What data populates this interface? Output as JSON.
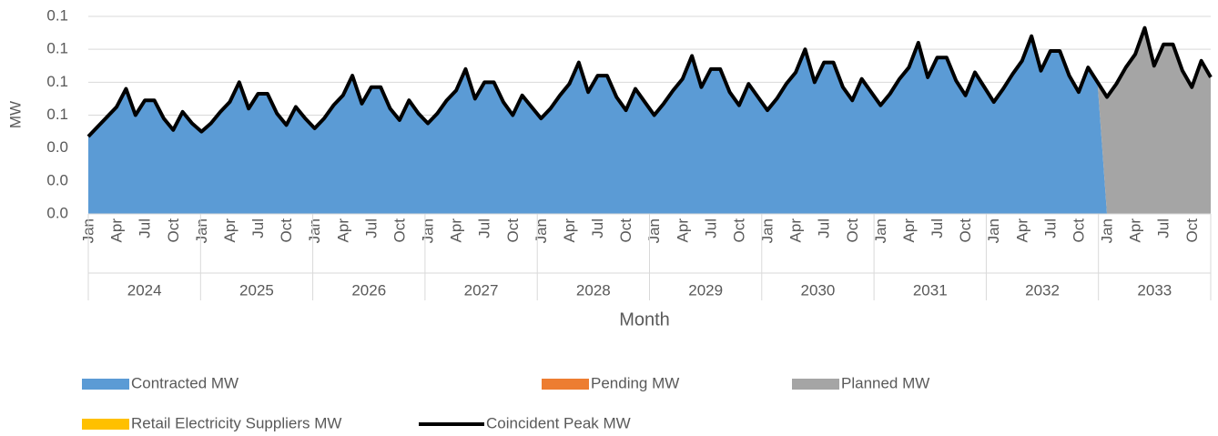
{
  "chart_data": {
    "type": "area",
    "xlabel": "Month",
    "ylabel": "MW",
    "ylim": [
      0,
      0.12
    ],
    "yticks": [
      {
        "value": 0,
        "label": "0.0"
      },
      {
        "value": 0.02,
        "label": "0.0"
      },
      {
        "value": 0.04,
        "label": "0.0"
      },
      {
        "value": 0.06,
        "label": "0.1"
      },
      {
        "value": 0.08,
        "label": "0.1"
      },
      {
        "value": 0.1,
        "label": "0.1"
      },
      {
        "value": 0.12,
        "label": "0.1"
      }
    ],
    "grid": true,
    "legend": "bottom",
    "categories": [
      "Jan",
      null,
      null,
      "Apr",
      null,
      null,
      "Jul",
      null,
      null,
      "Oct",
      null,
      null,
      "Jan",
      null,
      null,
      "Apr",
      null,
      null,
      "Jul",
      null,
      null,
      "Oct",
      null,
      null,
      "Jan",
      null,
      null,
      "Apr",
      null,
      null,
      "Jul",
      null,
      null,
      "Oct",
      null,
      null,
      "Jan",
      null,
      null,
      "Apr",
      null,
      null,
      "Jul",
      null,
      null,
      "Oct",
      null,
      null,
      "Jan",
      null,
      null,
      "Apr",
      null,
      null,
      "Jul",
      null,
      null,
      "Oct",
      null,
      null,
      "Jan",
      null,
      null,
      "Apr",
      null,
      null,
      "Jul",
      null,
      null,
      "Oct",
      null,
      null,
      "Jan",
      null,
      null,
      "Apr",
      null,
      null,
      "Jul",
      null,
      null,
      "Oct",
      null,
      null,
      "Jan",
      null,
      null,
      "Apr",
      null,
      null,
      "Jul",
      null,
      null,
      "Oct",
      null,
      null,
      "Jan",
      null,
      null,
      "Apr",
      null,
      null,
      "Jul",
      null,
      null,
      "Oct",
      null,
      null,
      "Jan",
      null,
      null,
      "Apr",
      null,
      null,
      "Jul",
      null,
      null,
      "Oct",
      null,
      null
    ],
    "groups": [
      "2024",
      "2025",
      "2026",
      "2027",
      "2028",
      "2029",
      "2030",
      "2031",
      "2032",
      "2033"
    ],
    "series": [
      {
        "name": "Contracted MW",
        "color": "#5b9bd5",
        "values": [
          0.047,
          0.053,
          0.059,
          0.065,
          0.076,
          0.06,
          0.069,
          0.069,
          0.058,
          0.051,
          0.062,
          0.055,
          0.05,
          0.055,
          0.062,
          0.068,
          0.08,
          0.064,
          0.073,
          0.073,
          0.061,
          0.054,
          0.065,
          0.058,
          0.052,
          0.058,
          0.066,
          0.072,
          0.084,
          0.067,
          0.077,
          0.077,
          0.064,
          0.057,
          0.069,
          0.061,
          0.055,
          0.061,
          0.069,
          0.075,
          0.088,
          0.07,
          0.08,
          0.08,
          0.068,
          0.06,
          0.072,
          0.065,
          0.058,
          0.064,
          0.072,
          0.079,
          0.092,
          0.074,
          0.084,
          0.084,
          0.071,
          0.063,
          0.076,
          0.068,
          0.06,
          0.067,
          0.075,
          0.082,
          0.096,
          0.077,
          0.088,
          0.088,
          0.074,
          0.066,
          0.079,
          0.071,
          0.063,
          0.07,
          0.079,
          0.086,
          0.1,
          0.08,
          0.092,
          0.092,
          0.077,
          0.069,
          0.082,
          0.074,
          0.066,
          0.073,
          0.082,
          0.089,
          0.104,
          0.083,
          0.095,
          0.095,
          0.081,
          0.072,
          0.086,
          0.077,
          0.068,
          0.076,
          0.085,
          0.093,
          0.108,
          0.087,
          0.099,
          0.099,
          0.084,
          0.074,
          0.089,
          0.08,
          0,
          0,
          0,
          0,
          0,
          0,
          0,
          0,
          0,
          0,
          0,
          0
        ]
      },
      {
        "name": "Pending MW",
        "color": "#ed7d31",
        "values": [
          0,
          0,
          0,
          0,
          0,
          0,
          0,
          0,
          0,
          0,
          0,
          0,
          0,
          0,
          0,
          0,
          0,
          0,
          0,
          0,
          0,
          0,
          0,
          0,
          0,
          0,
          0,
          0,
          0,
          0,
          0,
          0,
          0,
          0,
          0,
          0,
          0,
          0,
          0,
          0,
          0,
          0,
          0,
          0,
          0,
          0,
          0,
          0,
          0,
          0,
          0,
          0,
          0,
          0,
          0,
          0,
          0,
          0,
          0,
          0,
          0,
          0,
          0,
          0,
          0,
          0,
          0,
          0,
          0,
          0,
          0,
          0,
          0,
          0,
          0,
          0,
          0,
          0,
          0,
          0,
          0,
          0,
          0,
          0,
          0,
          0,
          0,
          0,
          0,
          0,
          0,
          0,
          0,
          0,
          0,
          0,
          0,
          0,
          0,
          0,
          0,
          0,
          0,
          0,
          0,
          0,
          0,
          0,
          0,
          0,
          0,
          0,
          0,
          0,
          0,
          0,
          0,
          0,
          0,
          0
        ]
      },
      {
        "name": "Planned MW",
        "color": "#a5a5a5",
        "values": [
          0,
          0,
          0,
          0,
          0,
          0,
          0,
          0,
          0,
          0,
          0,
          0,
          0,
          0,
          0,
          0,
          0,
          0,
          0,
          0,
          0,
          0,
          0,
          0,
          0,
          0,
          0,
          0,
          0,
          0,
          0,
          0,
          0,
          0,
          0,
          0,
          0,
          0,
          0,
          0,
          0,
          0,
          0,
          0,
          0,
          0,
          0,
          0,
          0,
          0,
          0,
          0,
          0,
          0,
          0,
          0,
          0,
          0,
          0,
          0,
          0,
          0,
          0,
          0,
          0,
          0,
          0,
          0,
          0,
          0,
          0,
          0,
          0,
          0,
          0,
          0,
          0,
          0,
          0,
          0,
          0,
          0,
          0,
          0,
          0,
          0,
          0,
          0,
          0,
          0,
          0,
          0,
          0,
          0,
          0,
          0,
          0,
          0,
          0,
          0,
          0,
          0,
          0,
          0,
          0,
          0,
          0,
          0,
          0.071,
          0.079,
          0.089,
          0.097,
          0.113,
          0.09,
          0.103,
          0.103,
          0.087,
          0.077,
          0.093,
          0.083
        ]
      },
      {
        "name": "Retail Electricity Suppliers MW",
        "color": "#ffc000",
        "values": [
          0,
          0,
          0,
          0,
          0,
          0,
          0,
          0,
          0,
          0,
          0,
          0,
          0,
          0,
          0,
          0,
          0,
          0,
          0,
          0,
          0,
          0,
          0,
          0,
          0,
          0,
          0,
          0,
          0,
          0,
          0,
          0,
          0,
          0,
          0,
          0,
          0,
          0,
          0,
          0,
          0,
          0,
          0,
          0,
          0,
          0,
          0,
          0,
          0,
          0,
          0,
          0,
          0,
          0,
          0,
          0,
          0,
          0,
          0,
          0,
          0,
          0,
          0,
          0,
          0,
          0,
          0,
          0,
          0,
          0,
          0,
          0,
          0,
          0,
          0,
          0,
          0,
          0,
          0,
          0,
          0,
          0,
          0,
          0,
          0,
          0,
          0,
          0,
          0,
          0,
          0,
          0,
          0,
          0,
          0,
          0,
          0,
          0,
          0,
          0,
          0,
          0,
          0,
          0,
          0,
          0,
          0,
          0,
          0,
          0,
          0,
          0,
          0,
          0,
          0,
          0,
          0,
          0,
          0,
          0
        ]
      },
      {
        "name": "Coincident Peak MW",
        "color": "#000000",
        "type": "line",
        "values": [
          0.047,
          0.053,
          0.059,
          0.065,
          0.076,
          0.06,
          0.069,
          0.069,
          0.058,
          0.051,
          0.062,
          0.055,
          0.05,
          0.055,
          0.062,
          0.068,
          0.08,
          0.064,
          0.073,
          0.073,
          0.061,
          0.054,
          0.065,
          0.058,
          0.052,
          0.058,
          0.066,
          0.072,
          0.084,
          0.067,
          0.077,
          0.077,
          0.064,
          0.057,
          0.069,
          0.061,
          0.055,
          0.061,
          0.069,
          0.075,
          0.088,
          0.07,
          0.08,
          0.08,
          0.068,
          0.06,
          0.072,
          0.065,
          0.058,
          0.064,
          0.072,
          0.079,
          0.092,
          0.074,
          0.084,
          0.084,
          0.071,
          0.063,
          0.076,
          0.068,
          0.06,
          0.067,
          0.075,
          0.082,
          0.096,
          0.077,
          0.088,
          0.088,
          0.074,
          0.066,
          0.079,
          0.071,
          0.063,
          0.07,
          0.079,
          0.086,
          0.1,
          0.08,
          0.092,
          0.092,
          0.077,
          0.069,
          0.082,
          0.074,
          0.066,
          0.073,
          0.082,
          0.089,
          0.104,
          0.083,
          0.095,
          0.095,
          0.081,
          0.072,
          0.086,
          0.077,
          0.068,
          0.076,
          0.085,
          0.093,
          0.108,
          0.087,
          0.099,
          0.099,
          0.084,
          0.074,
          0.089,
          0.08,
          0.071,
          0.079,
          0.089,
          0.097,
          0.113,
          0.09,
          0.103,
          0.103,
          0.087,
          0.077,
          0.093,
          0.083
        ]
      }
    ]
  }
}
